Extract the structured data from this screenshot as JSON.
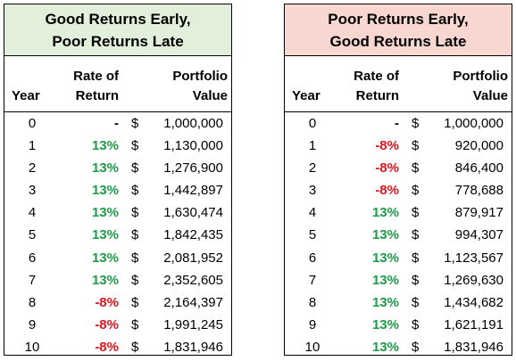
{
  "left_table": {
    "title_line1": "Good Returns Early,",
    "title_line2": "Poor Returns Late",
    "headers": {
      "year": "Year",
      "rate_line1": "Rate of",
      "rate_line2": "Return",
      "value_line1": "Portfolio",
      "value_line2": "Value"
    },
    "currency_symbol": "$",
    "rows": [
      {
        "year": "0",
        "rate": "-",
        "rate_type": "dash",
        "value": "1,000,000"
      },
      {
        "year": "1",
        "rate": "13%",
        "rate_type": "pos",
        "value": "1,130,000"
      },
      {
        "year": "2",
        "rate": "13%",
        "rate_type": "pos",
        "value": "1,276,900"
      },
      {
        "year": "3",
        "rate": "13%",
        "rate_type": "pos",
        "value": "1,442,897"
      },
      {
        "year": "4",
        "rate": "13%",
        "rate_type": "pos",
        "value": "1,630,474"
      },
      {
        "year": "5",
        "rate": "13%",
        "rate_type": "pos",
        "value": "1,842,435"
      },
      {
        "year": "6",
        "rate": "13%",
        "rate_type": "pos",
        "value": "2,081,952"
      },
      {
        "year": "7",
        "rate": "13%",
        "rate_type": "pos",
        "value": "2,352,605"
      },
      {
        "year": "8",
        "rate": "-8%",
        "rate_type": "neg",
        "value": "2,164,397"
      },
      {
        "year": "9",
        "rate": "-8%",
        "rate_type": "neg",
        "value": "1,991,245"
      },
      {
        "year": "10",
        "rate": "-8%",
        "rate_type": "neg",
        "value": "1,831,946"
      }
    ]
  },
  "right_table": {
    "title_line1": "Poor Returns Early,",
    "title_line2": "Good Returns Late",
    "headers": {
      "year": "Year",
      "rate_line1": "Rate of",
      "rate_line2": "Return",
      "value_line1": "Portfolio",
      "value_line2": "Value"
    },
    "currency_symbol": "$",
    "rows": [
      {
        "year": "0",
        "rate": "-",
        "rate_type": "dash",
        "value": "1,000,000"
      },
      {
        "year": "1",
        "rate": "-8%",
        "rate_type": "neg",
        "value": "920,000"
      },
      {
        "year": "2",
        "rate": "-8%",
        "rate_type": "neg",
        "value": "846,400"
      },
      {
        "year": "3",
        "rate": "-8%",
        "rate_type": "neg",
        "value": "778,688"
      },
      {
        "year": "4",
        "rate": "13%",
        "rate_type": "pos",
        "value": "879,917"
      },
      {
        "year": "5",
        "rate": "13%",
        "rate_type": "pos",
        "value": "994,307"
      },
      {
        "year": "6",
        "rate": "13%",
        "rate_type": "pos",
        "value": "1,123,567"
      },
      {
        "year": "7",
        "rate": "13%",
        "rate_type": "pos",
        "value": "1,269,630"
      },
      {
        "year": "8",
        "rate": "13%",
        "rate_type": "pos",
        "value": "1,434,682"
      },
      {
        "year": "9",
        "rate": "13%",
        "rate_type": "pos",
        "value": "1,621,191"
      },
      {
        "year": "10",
        "rate": "13%",
        "rate_type": "pos",
        "value": "1,831,946"
      }
    ]
  },
  "colors": {
    "positive": "#1f9a48",
    "negative": "#e0141e",
    "left_title_bg": "#e2efda",
    "right_title_bg": "#f8d7d0"
  }
}
